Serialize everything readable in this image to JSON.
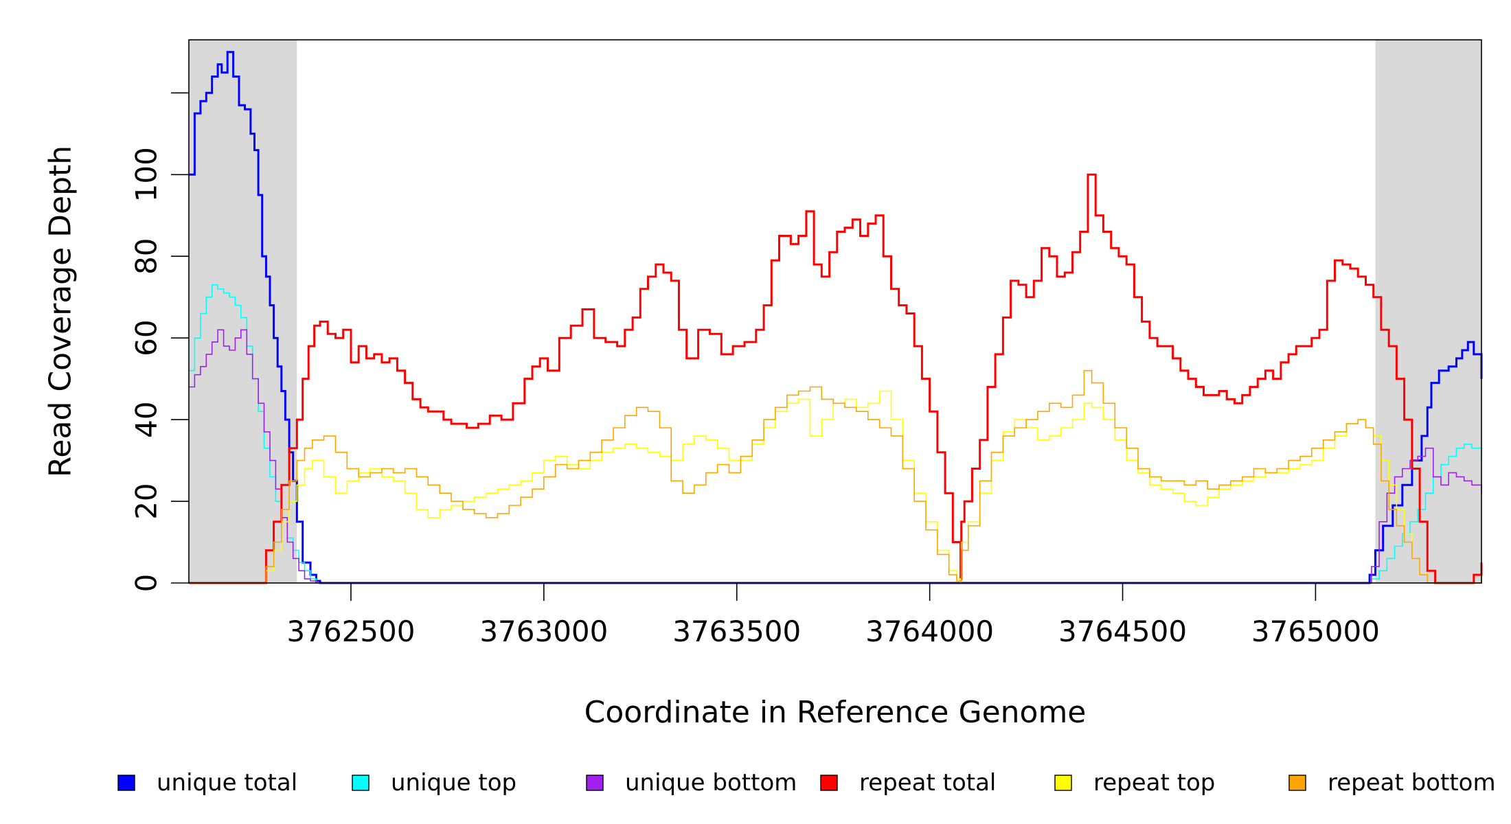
{
  "chart_data": {
    "type": "line",
    "title": "",
    "xlabel": "Coordinate in Reference Genome",
    "ylabel": "Read Coverage Depth",
    "xlim": [
      3762080,
      3765430
    ],
    "ylim": [
      0,
      133
    ],
    "x_ticks": [
      3762500,
      3763000,
      3763500,
      3764000,
      3764500,
      3765000
    ],
    "x_tick_labels": [
      "3762500",
      "3763000",
      "3763500",
      "3764000",
      "3764500",
      "3765000"
    ],
    "y_ticks": [
      0,
      20,
      40,
      60,
      80,
      100,
      120
    ],
    "y_tick_labels": [
      "0",
      "20",
      "40",
      "60",
      "80",
      "100",
      ""
    ],
    "shaded_regions": [
      [
        3762080,
        3762360
      ],
      [
        3765155,
        3765430
      ]
    ],
    "shade_color": "#d9d9d9",
    "grid": false,
    "legend_position": "bottom",
    "series": [
      {
        "name": "unique total",
        "color": "#0000ff",
        "width": 3,
        "x": [
          3762080,
          3762095,
          3762110,
          3762125,
          3762140,
          3762155,
          3762165,
          3762180,
          3762195,
          3762210,
          3762225,
          3762240,
          3762250,
          3762260,
          3762270,
          3762280,
          3762290,
          3762300,
          3762310,
          3762320,
          3762330,
          3762340,
          3762350,
          3762360,
          3762375,
          3762395,
          3762410,
          3762420,
          3765130,
          3765140,
          3765155,
          3765175,
          3765200,
          3765225,
          3765250,
          3765275,
          3765290,
          3765300,
          3765320,
          3765345,
          3765365,
          3765380,
          3765395,
          3765410,
          3765430
        ],
        "y": [
          100,
          115,
          118,
          120,
          124,
          127,
          125,
          130,
          124,
          117,
          116,
          110,
          106,
          95,
          80,
          75,
          68,
          60,
          53,
          47,
          40,
          32,
          25,
          15,
          5,
          2,
          0.5,
          0,
          0,
          2,
          8,
          14,
          19,
          24,
          30,
          36,
          43,
          49,
          52,
          53,
          55,
          57,
          59,
          56,
          50
        ]
      },
      {
        "name": "unique top",
        "color": "#00ffff",
        "width": 1.6,
        "x": [
          3762080,
          3762095,
          3762110,
          3762125,
          3762140,
          3762155,
          3762170,
          3762185,
          3762200,
          3762215,
          3762230,
          3762245,
          3762260,
          3762275,
          3762290,
          3762305,
          3762320,
          3762335,
          3762350,
          3762365,
          3762380,
          3762395,
          3762410,
          3765130,
          3765145,
          3765165,
          3765185,
          3765205,
          3765225,
          3765245,
          3765265,
          3765285,
          3765305,
          3765325,
          3765345,
          3765365,
          3765385,
          3765405,
          3765430
        ],
        "y": [
          52,
          60,
          66,
          70,
          73,
          72,
          71,
          70,
          68,
          65,
          58,
          50,
          42,
          33,
          26,
          20,
          15,
          11,
          8,
          5,
          3,
          1,
          0,
          0,
          1,
          3,
          6,
          9,
          12,
          15,
          18,
          22,
          26,
          29,
          31,
          33,
          34,
          33,
          30
        ]
      },
      {
        "name": "unique bottom",
        "color": "#a020f0",
        "width": 1.6,
        "x": [
          3762080,
          3762095,
          3762110,
          3762125,
          3762140,
          3762155,
          3762170,
          3762185,
          3762200,
          3762215,
          3762230,
          3762245,
          3762260,
          3762275,
          3762290,
          3762305,
          3762320,
          3762335,
          3762350,
          3762365,
          3762380,
          3762395,
          3762410,
          3765130,
          3765145,
          3765165,
          3765185,
          3765205,
          3765225,
          3765245,
          3765265,
          3765285,
          3765305,
          3765325,
          3765345,
          3765365,
          3765385,
          3765405,
          3765430
        ],
        "y": [
          48,
          51,
          53,
          56,
          59,
          62,
          58,
          57,
          60,
          62,
          56,
          50,
          44,
          37,
          30,
          23,
          16,
          10,
          6,
          3,
          1,
          0.5,
          0,
          0,
          4,
          15,
          22,
          26,
          28,
          30,
          31,
          33,
          26,
          24,
          27,
          26,
          25,
          24,
          22
        ]
      },
      {
        "name": "repeat total",
        "color": "#ff0000",
        "width": 3,
        "x": [
          3762080,
          3762260,
          3762280,
          3762300,
          3762320,
          3762340,
          3762360,
          3762375,
          3762390,
          3762405,
          3762420,
          3762440,
          3762460,
          3762480,
          3762500,
          3762520,
          3762540,
          3762560,
          3762580,
          3762600,
          3762620,
          3762640,
          3762660,
          3762680,
          3762700,
          3762720,
          3762740,
          3762760,
          3762780,
          3762800,
          3762830,
          3762860,
          3762890,
          3762920,
          3762950,
          3762970,
          3762990,
          3763010,
          3763040,
          3763070,
          3763100,
          3763130,
          3763160,
          3763190,
          3763210,
          3763230,
          3763250,
          3763270,
          3763290,
          3763310,
          3763330,
          3763350,
          3763370,
          3763400,
          3763430,
          3763460,
          3763490,
          3763520,
          3763550,
          3763570,
          3763590,
          3763610,
          3763640,
          3763660,
          3763680,
          3763700,
          3763720,
          3763740,
          3763760,
          3763780,
          3763800,
          3763820,
          3763840,
          3763860,
          3763880,
          3763900,
          3763920,
          3763940,
          3763960,
          3763980,
          3764000,
          3764020,
          3764040,
          3764060,
          3764080,
          3764082,
          3764090,
          3764110,
          3764130,
          3764150,
          3764170,
          3764190,
          3764210,
          3764230,
          3764250,
          3764270,
          3764290,
          3764310,
          3764330,
          3764350,
          3764370,
          3764390,
          3764410,
          3764430,
          3764450,
          3764470,
          3764490,
          3764510,
          3764530,
          3764550,
          3764570,
          3764590,
          3764610,
          3764630,
          3764650,
          3764670,
          3764690,
          3764710,
          3764730,
          3764750,
          3764770,
          3764790,
          3764810,
          3764830,
          3764850,
          3764870,
          3764890,
          3764910,
          3764930,
          3764950,
          3764970,
          3764990,
          3765010,
          3765030,
          3765050,
          3765070,
          3765090,
          3765110,
          3765130,
          3765150,
          3765170,
          3765190,
          3765210,
          3765230,
          3765250,
          3765270,
          3765290,
          3765310,
          3765350,
          3765390,
          3765410,
          3765430
        ],
        "y": [
          0,
          0,
          8,
          15,
          24,
          33,
          40,
          50,
          58,
          63,
          64,
          61,
          60,
          62,
          54,
          58,
          55,
          56,
          54,
          55,
          52,
          49,
          45,
          43,
          42,
          42,
          40,
          39,
          39,
          38,
          39,
          41,
          40,
          44,
          50,
          53,
          55,
          52,
          60,
          63,
          67,
          60,
          59,
          58,
          62,
          65,
          72,
          75,
          78,
          76,
          74,
          62,
          55,
          62,
          61,
          56,
          58,
          59,
          62,
          68,
          79,
          85,
          83,
          85,
          91,
          78,
          75,
          81,
          86,
          87,
          89,
          85,
          88,
          90,
          80,
          72,
          68,
          66,
          58,
          50,
          42,
          32,
          22,
          10,
          1,
          15,
          20,
          28,
          35,
          48,
          56,
          65,
          74,
          73,
          70,
          74,
          82,
          80,
          75,
          76,
          81,
          86,
          100,
          90,
          86,
          82,
          80,
          78,
          70,
          64,
          60,
          58,
          58,
          55,
          52,
          50,
          48,
          46,
          46,
          47,
          45,
          44,
          46,
          48,
          50,
          52,
          50,
          54,
          56,
          58,
          58,
          60,
          62,
          74,
          79,
          78,
          77,
          75,
          73,
          70,
          62,
          58,
          50,
          40,
          28,
          15,
          3,
          0,
          0,
          0,
          2,
          5
        ]
      },
      {
        "name": "repeat top",
        "color": "#ffff00",
        "width": 1.6,
        "x": [
          3762080,
          3762260,
          3762280,
          3762300,
          3762320,
          3762340,
          3762360,
          3762380,
          3762400,
          3762430,
          3762460,
          3762490,
          3762520,
          3762550,
          3762580,
          3762610,
          3762640,
          3762670,
          3762700,
          3762730,
          3762760,
          3762790,
          3762820,
          3762850,
          3762880,
          3762910,
          3762940,
          3762970,
          3763000,
          3763030,
          3763060,
          3763090,
          3763120,
          3763150,
          3763180,
          3763210,
          3763240,
          3763270,
          3763300,
          3763330,
          3763360,
          3763390,
          3763420,
          3763450,
          3763480,
          3763510,
          3763540,
          3763570,
          3763600,
          3763630,
          3763660,
          3763690,
          3763720,
          3763750,
          3763780,
          3763810,
          3763840,
          3763870,
          3763900,
          3763930,
          3763960,
          3763990,
          3764020,
          3764050,
          3764070,
          3764080,
          3764082,
          3764100,
          3764130,
          3764160,
          3764190,
          3764220,
          3764250,
          3764280,
          3764310,
          3764340,
          3764370,
          3764400,
          3764420,
          3764450,
          3764480,
          3764510,
          3764540,
          3764570,
          3764600,
          3764630,
          3764660,
          3764690,
          3764720,
          3764750,
          3764780,
          3764810,
          3764840,
          3764870,
          3764900,
          3764930,
          3764960,
          3764990,
          3765020,
          3765050,
          3765080,
          3765110,
          3765130,
          3765150,
          3765170,
          3765190,
          3765210,
          3765230,
          3765250,
          3765270,
          3765290,
          3765320,
          3765350,
          3765390,
          3765430
        ],
        "y": [
          0,
          0,
          3,
          8,
          15,
          20,
          24,
          28,
          30,
          26,
          22,
          25,
          27,
          28,
          26,
          25,
          22,
          18,
          16,
          18,
          19,
          20,
          21,
          22,
          23,
          24,
          25,
          27,
          30,
          31,
          29,
          28,
          30,
          32,
          33,
          34,
          33,
          32,
          31,
          30,
          34,
          36,
          35,
          33,
          30,
          30,
          34,
          38,
          42,
          44,
          45,
          36,
          40,
          44,
          45,
          43,
          44,
          47,
          40,
          30,
          22,
          15,
          8,
          3,
          1,
          0,
          10,
          15,
          22,
          30,
          37,
          40,
          38,
          35,
          36,
          38,
          40,
          44,
          43,
          40,
          35,
          30,
          27,
          24,
          23,
          22,
          20,
          19,
          21,
          23,
          24,
          25,
          26,
          27,
          27,
          28,
          29,
          30,
          33,
          36,
          39,
          40,
          38,
          36,
          30,
          24,
          18,
          12,
          6,
          2,
          0,
          0,
          0,
          0,
          0
        ]
      },
      {
        "name": "repeat bottom",
        "color": "#ffa500",
        "width": 1.6,
        "x": [
          3762080,
          3762260,
          3762280,
          3762300,
          3762320,
          3762340,
          3762360,
          3762380,
          3762400,
          3762430,
          3762460,
          3762490,
          3762520,
          3762550,
          3762580,
          3762610,
          3762640,
          3762670,
          3762700,
          3762730,
          3762760,
          3762790,
          3762820,
          3762850,
          3762880,
          3762910,
          3762940,
          3762970,
          3763000,
          3763030,
          3763060,
          3763090,
          3763120,
          3763150,
          3763180,
          3763210,
          3763240,
          3763270,
          3763300,
          3763330,
          3763360,
          3763390,
          3763420,
          3763450,
          3763480,
          3763510,
          3763540,
          3763570,
          3763600,
          3763630,
          3763660,
          3763690,
          3763720,
          3763750,
          3763780,
          3763810,
          3763840,
          3763870,
          3763900,
          3763930,
          3763960,
          3763990,
          3764020,
          3764050,
          3764070,
          3764080,
          3764082,
          3764100,
          3764130,
          3764160,
          3764190,
          3764220,
          3764250,
          3764280,
          3764310,
          3764340,
          3764370,
          3764400,
          3764420,
          3764450,
          3764480,
          3764510,
          3764540,
          3764570,
          3764600,
          3764630,
          3764660,
          3764690,
          3764720,
          3764750,
          3764780,
          3764810,
          3764840,
          3764870,
          3764900,
          3764930,
          3764960,
          3764990,
          3765020,
          3765050,
          3765080,
          3765110,
          3765130,
          3765150,
          3765170,
          3765190,
          3765210,
          3765230,
          3765250,
          3765270,
          3765290,
          3765320,
          3765350,
          3765390,
          3765430
        ],
        "y": [
          0,
          0,
          4,
          10,
          18,
          25,
          30,
          33,
          35,
          36,
          32,
          28,
          26,
          27,
          28,
          27,
          28,
          26,
          24,
          22,
          20,
          18,
          17,
          16,
          17,
          19,
          21,
          23,
          26,
          29,
          28,
          30,
          32,
          35,
          38,
          41,
          43,
          42,
          38,
          25,
          22,
          24,
          27,
          29,
          27,
          31,
          35,
          40,
          43,
          46,
          47,
          48,
          45,
          44,
          43,
          42,
          40,
          38,
          36,
          28,
          20,
          13,
          7,
          2,
          0.5,
          0,
          8,
          14,
          25,
          32,
          36,
          38,
          40,
          42,
          44,
          43,
          46,
          52,
          49,
          44,
          38,
          33,
          28,
          26,
          25,
          25,
          24,
          25,
          23,
          24,
          25,
          26,
          28,
          27,
          28,
          30,
          31,
          33,
          35,
          37,
          39,
          40,
          38,
          34,
          25,
          18,
          14,
          10,
          6,
          2,
          0,
          0,
          0,
          0,
          2
        ]
      }
    ]
  }
}
